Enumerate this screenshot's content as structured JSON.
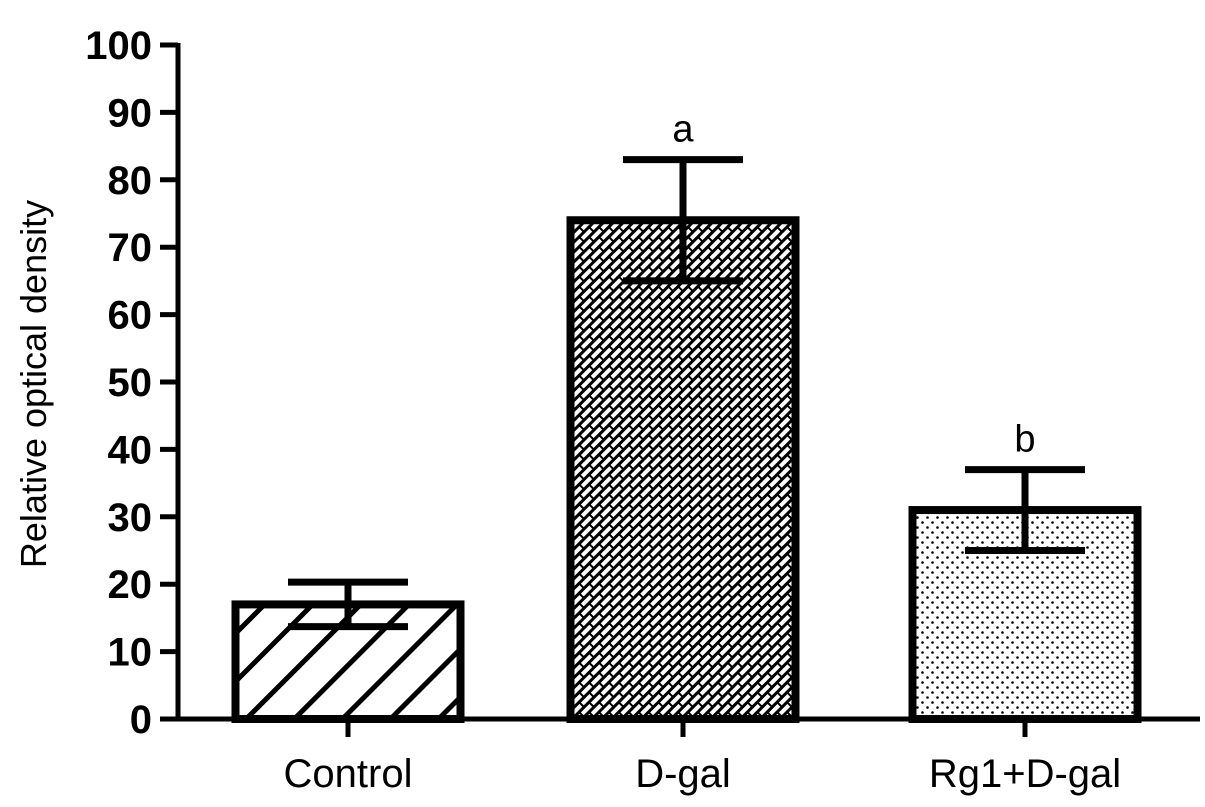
{
  "chart_data": {
    "type": "bar",
    "title": "",
    "xlabel": "",
    "ylabel": "Relative optical density",
    "ylim": [
      0,
      100
    ],
    "yticks": [
      0,
      10,
      20,
      30,
      40,
      50,
      60,
      70,
      80,
      90,
      100
    ],
    "categories": [
      "Control",
      "D-gal",
      "Rg1+D-gal"
    ],
    "values": [
      17,
      74,
      31
    ],
    "errors": [
      3.3,
      9,
      6
    ],
    "annotations": [
      "",
      "a",
      "b"
    ],
    "patterns": [
      "diagonal-stripes",
      "cross-hatch-brick",
      "dots"
    ],
    "grid": false,
    "legend": "none",
    "colors": {
      "bar_fill": "#ffffff",
      "stroke": "#000000"
    }
  }
}
